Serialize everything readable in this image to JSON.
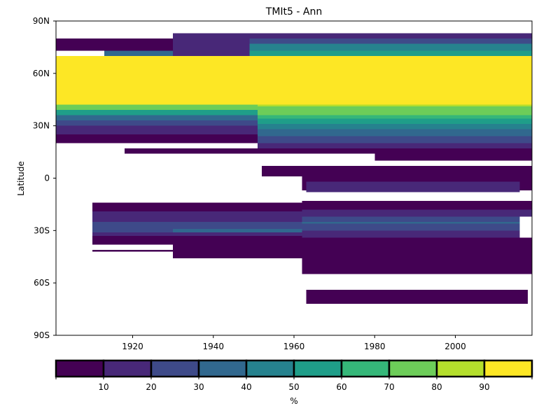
{
  "chart_data": {
    "type": "heatmap",
    "title": "TMIt5 - Ann",
    "xlabel": "",
    "ylabel": "Latitude",
    "xlim": [
      1901,
      2019
    ],
    "ylim": [
      -90,
      90
    ],
    "x_ticks": [
      {
        "value": 1920,
        "label": "1920"
      },
      {
        "value": 1940,
        "label": "1940"
      },
      {
        "value": 1960,
        "label": "1960"
      },
      {
        "value": 1980,
        "label": "1980"
      },
      {
        "value": 2000,
        "label": "2000"
      }
    ],
    "y_ticks": [
      {
        "value": 90,
        "label": "90N"
      },
      {
        "value": 60,
        "label": "60N"
      },
      {
        "value": 30,
        "label": "30N"
      },
      {
        "value": 0,
        "label": "0"
      },
      {
        "value": -30,
        "label": "30S"
      },
      {
        "value": -60,
        "label": "60S"
      },
      {
        "value": -90,
        "label": "90S"
      }
    ],
    "colorbar": {
      "label": "%",
      "bounds": [
        0,
        10,
        20,
        30,
        40,
        50,
        60,
        70,
        80,
        90,
        100
      ],
      "tick_labels": [
        "10",
        "20",
        "30",
        "40",
        "50",
        "60",
        "70",
        "80",
        "90"
      ],
      "colors": [
        "#440154",
        "#482878",
        "#3e4a89",
        "#31688e",
        "#26828e",
        "#1f9e89",
        "#35b779",
        "#6dcd59",
        "#b4de2c",
        "#fde725"
      ]
    },
    "cells_description": "Coverage percent per (year, latitude) band",
    "cells": [
      {
        "x0": 1901,
        "x1": 1949,
        "y0": 73,
        "y1": 80,
        "value": 5
      },
      {
        "x0": 1913,
        "x1": 1930,
        "y0": 70,
        "y1": 73,
        "value": 35
      },
      {
        "x0": 1930,
        "x1": 1949,
        "y0": 70,
        "y1": 83,
        "value": 15
      },
      {
        "x0": 1949,
        "x1": 2019,
        "y0": 80,
        "y1": 83,
        "value": 15
      },
      {
        "x0": 1949,
        "x1": 2019,
        "y0": 77,
        "y1": 80,
        "value": 25
      },
      {
        "x0": 1949,
        "x1": 2019,
        "y0": 73,
        "y1": 77,
        "value": 45
      },
      {
        "x0": 1949,
        "x1": 2019,
        "y0": 70,
        "y1": 73,
        "value": 55
      },
      {
        "x0": 1901,
        "x1": 2019,
        "y0": 42,
        "y1": 70,
        "value": 95
      },
      {
        "x0": 1901,
        "x1": 1951,
        "y0": 39,
        "y1": 42,
        "value": 75
      },
      {
        "x0": 1901,
        "x1": 1951,
        "y0": 36,
        "y1": 39,
        "value": 55
      },
      {
        "x0": 1901,
        "x1": 1951,
        "y0": 33,
        "y1": 36,
        "value": 35
      },
      {
        "x0": 1901,
        "x1": 1951,
        "y0": 30,
        "y1": 33,
        "value": 25
      },
      {
        "x0": 1901,
        "x1": 1951,
        "y0": 25,
        "y1": 30,
        "value": 15
      },
      {
        "x0": 1901,
        "x1": 1951,
        "y0": 20,
        "y1": 25,
        "value": 5
      },
      {
        "x0": 1951,
        "x1": 2019,
        "y0": 41,
        "y1": 42,
        "value": 85
      },
      {
        "x0": 1951,
        "x1": 2019,
        "y0": 36,
        "y1": 41,
        "value": 75
      },
      {
        "x0": 1951,
        "x1": 2019,
        "y0": 34,
        "y1": 36,
        "value": 65
      },
      {
        "x0": 1951,
        "x1": 2019,
        "y0": 31,
        "y1": 34,
        "value": 55
      },
      {
        "x0": 1951,
        "x1": 2019,
        "y0": 28,
        "y1": 31,
        "value": 45
      },
      {
        "x0": 1951,
        "x1": 2019,
        "y0": 24,
        "y1": 28,
        "value": 35
      },
      {
        "x0": 1951,
        "x1": 2019,
        "y0": 20,
        "y1": 24,
        "value": 25
      },
      {
        "x0": 1951,
        "x1": 2019,
        "y0": 17,
        "y1": 20,
        "value": 15
      },
      {
        "x0": 1918,
        "x1": 2019,
        "y0": 14,
        "y1": 17,
        "value": 5
      },
      {
        "x0": 1980,
        "x1": 2019,
        "y0": 10,
        "y1": 14,
        "value": 5
      },
      {
        "x0": 1952,
        "x1": 2019,
        "y0": 1,
        "y1": 7,
        "value": 5
      },
      {
        "x0": 1962,
        "x1": 2019,
        "y0": -7,
        "y1": 7,
        "value": 5
      },
      {
        "x0": 1963,
        "x1": 2016,
        "y0": -8,
        "y1": -2,
        "value": 15
      },
      {
        "x0": 1962,
        "x1": 2019,
        "y0": -18,
        "y1": -13,
        "value": 5
      },
      {
        "x0": 1962,
        "x1": 2019,
        "y0": -22,
        "y1": -18,
        "value": 15
      },
      {
        "x0": 1962,
        "x1": 2016,
        "y0": -25,
        "y1": -22,
        "value": 25
      },
      {
        "x0": 1962,
        "x1": 2016,
        "y0": -26,
        "y1": -25,
        "value": 35
      },
      {
        "x0": 1962,
        "x1": 2016,
        "y0": -30,
        "y1": -26,
        "value": 25
      },
      {
        "x0": 1962,
        "x1": 2016,
        "y0": -34,
        "y1": -30,
        "value": 15
      },
      {
        "x0": 1962,
        "x1": 2019,
        "y0": -55,
        "y1": -34,
        "value": 5
      },
      {
        "x0": 1910,
        "x1": 1962,
        "y0": -19,
        "y1": -14,
        "value": 5
      },
      {
        "x0": 1910,
        "x1": 1962,
        "y0": -25,
        "y1": -19,
        "value": 15
      },
      {
        "x0": 1910,
        "x1": 1930,
        "y0": -31,
        "y1": -25,
        "value": 25
      },
      {
        "x0": 1930,
        "x1": 1962,
        "y0": -29,
        "y1": -25,
        "value": 25
      },
      {
        "x0": 1930,
        "x1": 1962,
        "y0": -31,
        "y1": -29,
        "value": 35
      },
      {
        "x0": 1910,
        "x1": 1962,
        "y0": -33,
        "y1": -31,
        "value": 15
      },
      {
        "x0": 1910,
        "x1": 1962,
        "y0": -38,
        "y1": -33,
        "value": 5
      },
      {
        "x0": 1930,
        "x1": 1962,
        "y0": -46,
        "y1": -38,
        "value": 5
      },
      {
        "x0": 1910,
        "x1": 1930,
        "y0": -42,
        "y1": -41,
        "value": 5
      },
      {
        "x0": 1963,
        "x1": 2018,
        "y0": -72,
        "y1": -64,
        "value": 5
      }
    ]
  }
}
